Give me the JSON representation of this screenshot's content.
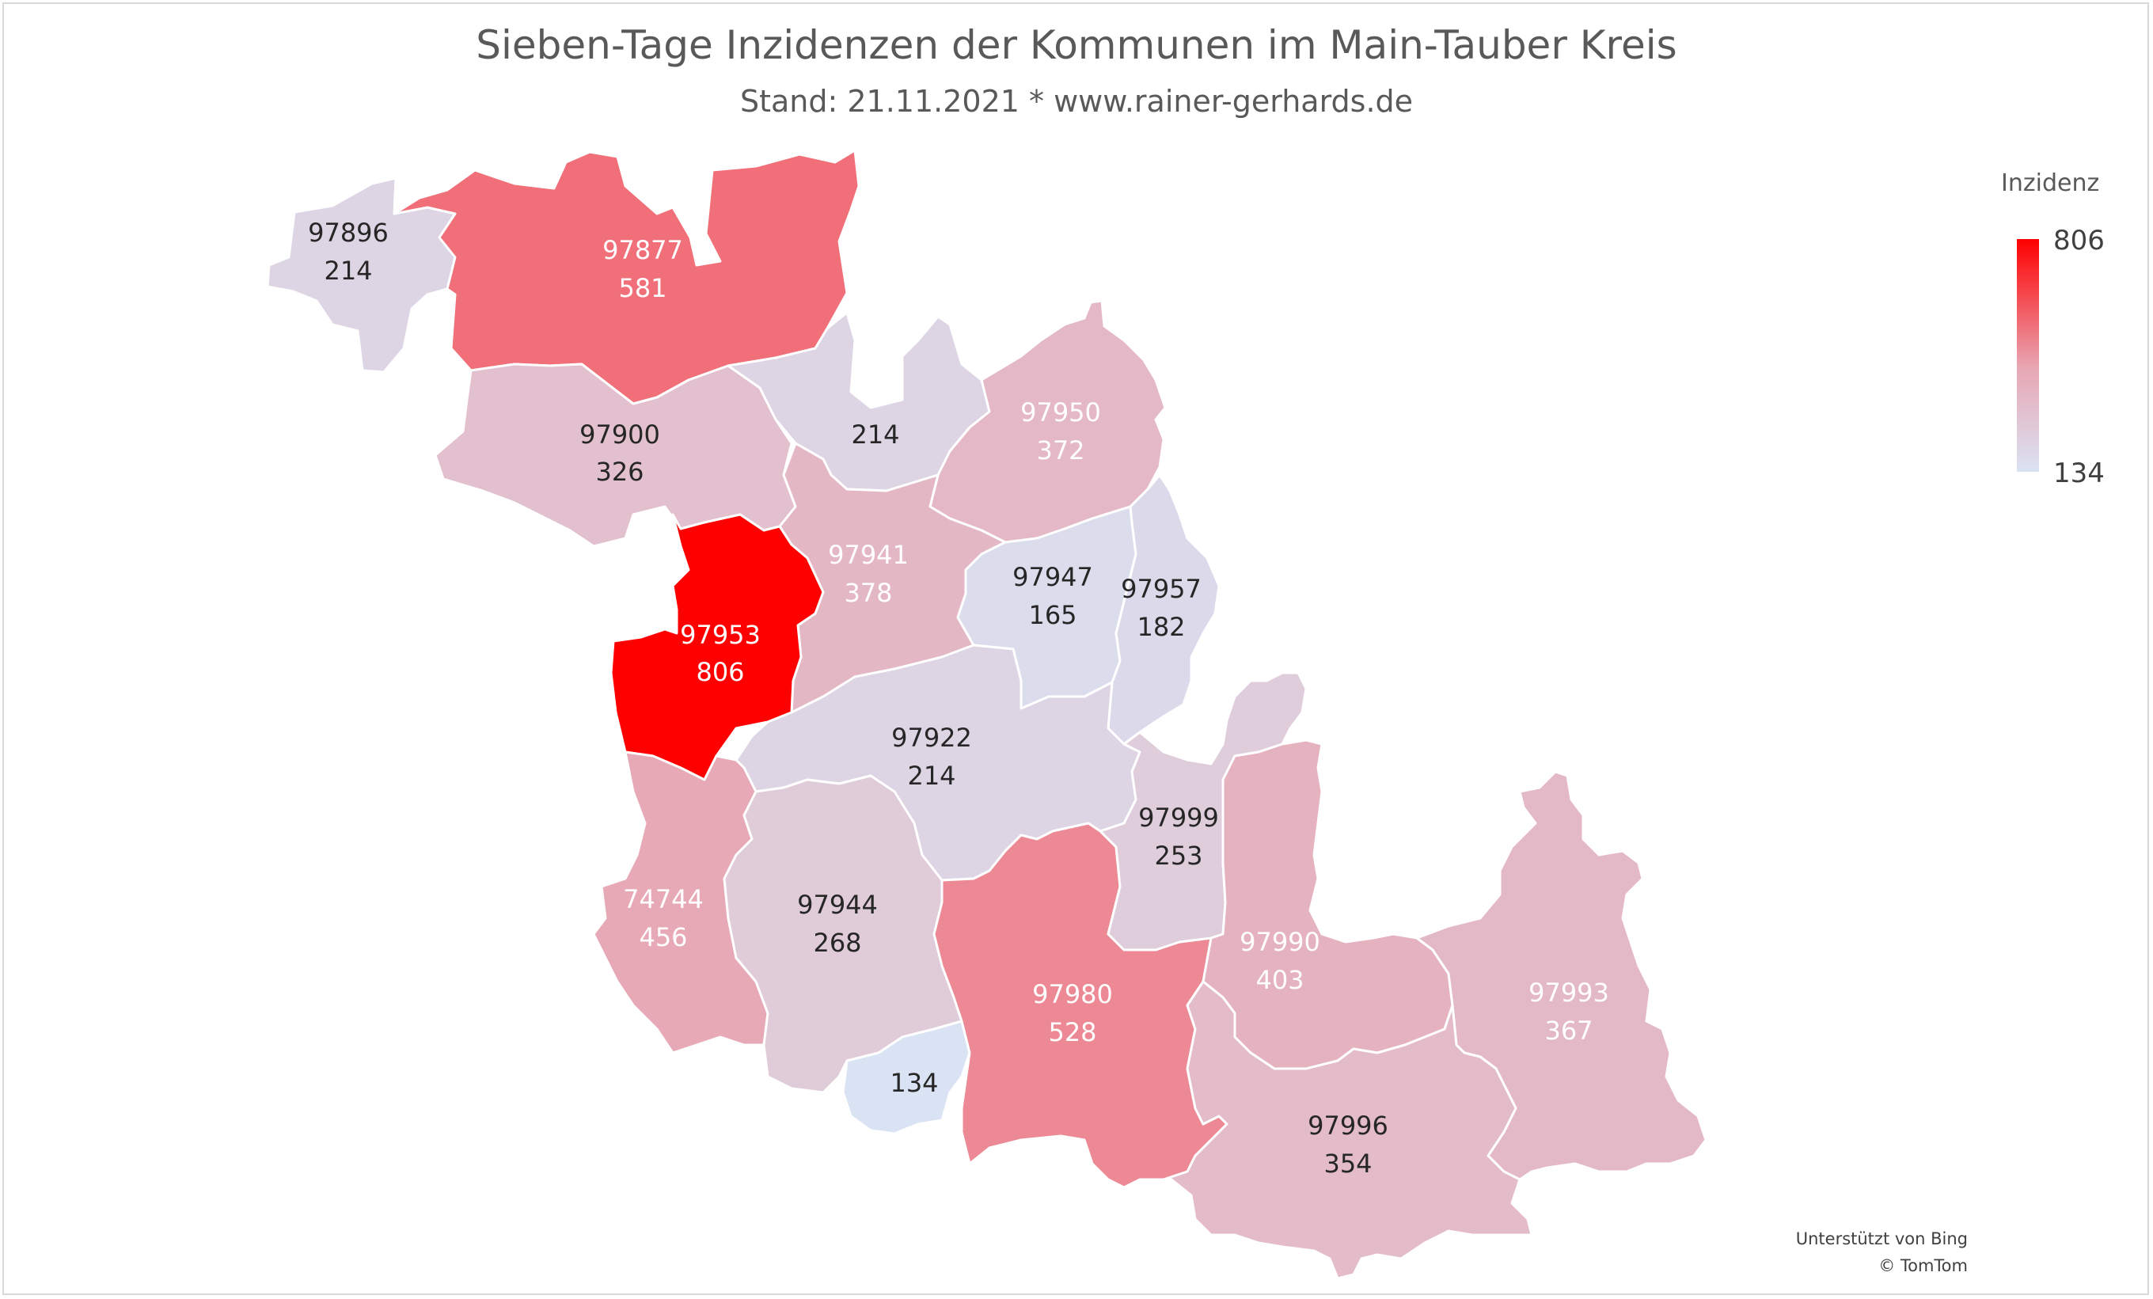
{
  "title": "Sieben-Tage Inzidenzen der Kommunen im Main-Tauber Kreis",
  "subtitle": "Stand: 21.11.2021 * www.rainer-gerhards.de",
  "legend": {
    "title": "Inzidenz",
    "max_label": "806",
    "min_label": "134",
    "min": 134,
    "max": 806,
    "color_low": "#dae3f3",
    "color_mid": "#e8a6b3",
    "color_high": "#ff0000"
  },
  "attribution": {
    "line1": "Unterstützt von Bing",
    "line2": "© TomTom"
  },
  "regions": [
    {
      "id": "r97896",
      "plz": "97896",
      "value": 214,
      "label_plz": "97896",
      "label_value": "214"
    },
    {
      "id": "r97877",
      "plz": "97877",
      "value": 581,
      "label_plz": "97877",
      "label_value": "581"
    },
    {
      "id": "r97900",
      "plz": "97900",
      "value": 326,
      "label_plz": "97900",
      "label_value": "326"
    },
    {
      "id": "r214b",
      "plz": "",
      "value": 214,
      "label_plz": "",
      "label_value": "214"
    },
    {
      "id": "r97950",
      "plz": "97950",
      "value": 372,
      "label_plz": "97950",
      "label_value": "372"
    },
    {
      "id": "r97941",
      "plz": "97941",
      "value": 378,
      "label_plz": "97941",
      "label_value": "378"
    },
    {
      "id": "r97953",
      "plz": "97953",
      "value": 806,
      "label_plz": "97953",
      "label_value": "806"
    },
    {
      "id": "r97947",
      "plz": "97947",
      "value": 165,
      "label_plz": "97947",
      "label_value": "165"
    },
    {
      "id": "r97957",
      "plz": "97957",
      "value": 182,
      "label_plz": "97957",
      "label_value": "182"
    },
    {
      "id": "r97922",
      "plz": "97922",
      "value": 214,
      "label_plz": "97922",
      "label_value": "214"
    },
    {
      "id": "r97999",
      "plz": "97999",
      "value": 253,
      "label_plz": "97999",
      "label_value": "253"
    },
    {
      "id": "r74744",
      "plz": "74744",
      "value": 456,
      "label_plz": "74744",
      "label_value": "456"
    },
    {
      "id": "r97944",
      "plz": "97944",
      "value": 268,
      "label_plz": "97944",
      "label_value": "268"
    },
    {
      "id": "r97980",
      "plz": "97980",
      "value": 528,
      "label_plz": "97980",
      "label_value": "528"
    },
    {
      "id": "r97990",
      "plz": "97990",
      "value": 403,
      "label_plz": "97990",
      "label_value": "403"
    },
    {
      "id": "r97993",
      "plz": "97993",
      "value": 367,
      "label_plz": "97993",
      "label_value": "367"
    },
    {
      "id": "r134",
      "plz": "",
      "value": 134,
      "label_plz": "",
      "label_value": "134"
    },
    {
      "id": "r97996",
      "plz": "97996",
      "value": 354,
      "label_plz": "97996",
      "label_value": "354"
    }
  ]
}
